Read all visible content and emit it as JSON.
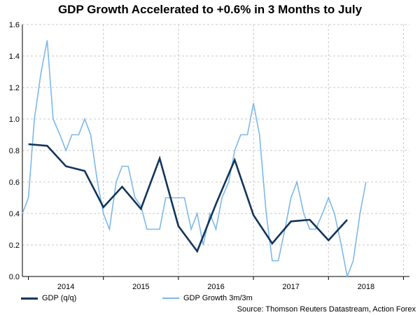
{
  "title": "GDP Growth Accelerated to +0.6% in 3 Months to July",
  "source": "Source: Thomson Reuters Datastream, Action Forex",
  "colors": {
    "gdp": "#12355b",
    "gdp3m": "#7db8ea",
    "grid": "#c8c8c8"
  },
  "chart_data": {
    "type": "line",
    "title": "GDP Growth Accelerated to +0.6% in 3 Months to July",
    "xlabel": "",
    "ylabel": "",
    "xlim": [
      2013.42,
      2018.58
    ],
    "ylim": [
      0,
      1.6
    ],
    "yticks": [
      "0.0",
      "0.2",
      "0.4",
      "0.6",
      "0.8",
      "1.0",
      "1.2",
      "1.4",
      "1.6"
    ],
    "xticks": [
      {
        "label": "2014",
        "x": 2014.0
      },
      {
        "label": "2015",
        "x": 2015.0
      },
      {
        "label": "2016",
        "x": 2016.0
      },
      {
        "label": "2017",
        "x": 2017.0
      },
      {
        "label": "2018",
        "x": 2018.0
      }
    ],
    "grid": true,
    "legend_position": "bottom-left",
    "series": [
      {
        "name": "GDP (q/q)",
        "color": "#12355b",
        "points": [
          [
            2013.5,
            0.84
          ],
          [
            2013.75,
            0.83
          ],
          [
            2014.0,
            0.7
          ],
          [
            2014.25,
            0.67
          ],
          [
            2014.5,
            0.44
          ],
          [
            2014.75,
            0.57
          ],
          [
            2015.0,
            0.43
          ],
          [
            2015.25,
            0.75
          ],
          [
            2015.5,
            0.32
          ],
          [
            2015.75,
            0.16
          ],
          [
            2016.0,
            0.46
          ],
          [
            2016.25,
            0.74
          ],
          [
            2016.5,
            0.39
          ],
          [
            2016.75,
            0.21
          ],
          [
            2017.0,
            0.35
          ],
          [
            2017.25,
            0.36
          ],
          [
            2017.5,
            0.23
          ],
          [
            2017.75,
            0.36
          ]
        ]
      },
      {
        "name": "GDP Growth 3m/3m",
        "color": "#7db8ea",
        "points": [
          [
            2013.42,
            0.4
          ],
          [
            2013.5,
            0.5
          ],
          [
            2013.58,
            1.0
          ],
          [
            2013.67,
            1.3
          ],
          [
            2013.75,
            1.5
          ],
          [
            2013.83,
            1.0
          ],
          [
            2013.92,
            0.9
          ],
          [
            2014.0,
            0.8
          ],
          [
            2014.08,
            0.9
          ],
          [
            2014.17,
            0.9
          ],
          [
            2014.25,
            1.0
          ],
          [
            2014.33,
            0.9
          ],
          [
            2014.42,
            0.6
          ],
          [
            2014.5,
            0.4
          ],
          [
            2014.58,
            0.3
          ],
          [
            2014.67,
            0.6
          ],
          [
            2014.75,
            0.7
          ],
          [
            2014.83,
            0.7
          ],
          [
            2014.92,
            0.5
          ],
          [
            2015.0,
            0.45
          ],
          [
            2015.08,
            0.3
          ],
          [
            2015.17,
            0.3
          ],
          [
            2015.25,
            0.3
          ],
          [
            2015.33,
            0.5
          ],
          [
            2015.42,
            0.5
          ],
          [
            2015.5,
            0.5
          ],
          [
            2015.58,
            0.5
          ],
          [
            2015.67,
            0.3
          ],
          [
            2015.75,
            0.4
          ],
          [
            2015.83,
            0.2
          ],
          [
            2015.92,
            0.4
          ],
          [
            2016.0,
            0.3
          ],
          [
            2016.08,
            0.5
          ],
          [
            2016.17,
            0.6
          ],
          [
            2016.25,
            0.8
          ],
          [
            2016.33,
            0.9
          ],
          [
            2016.42,
            0.9
          ],
          [
            2016.5,
            1.1
          ],
          [
            2016.58,
            0.9
          ],
          [
            2016.67,
            0.4
          ],
          [
            2016.75,
            0.1
          ],
          [
            2016.83,
            0.1
          ],
          [
            2016.92,
            0.3
          ],
          [
            2017.0,
            0.5
          ],
          [
            2017.08,
            0.6
          ],
          [
            2017.17,
            0.4
          ],
          [
            2017.25,
            0.3
          ],
          [
            2017.33,
            0.3
          ],
          [
            2017.42,
            0.4
          ],
          [
            2017.5,
            0.5
          ],
          [
            2017.58,
            0.4
          ],
          [
            2017.67,
            0.2
          ],
          [
            2017.75,
            0.0
          ],
          [
            2017.83,
            0.1
          ],
          [
            2017.92,
            0.4
          ],
          [
            2018.0,
            0.6
          ]
        ]
      }
    ]
  }
}
